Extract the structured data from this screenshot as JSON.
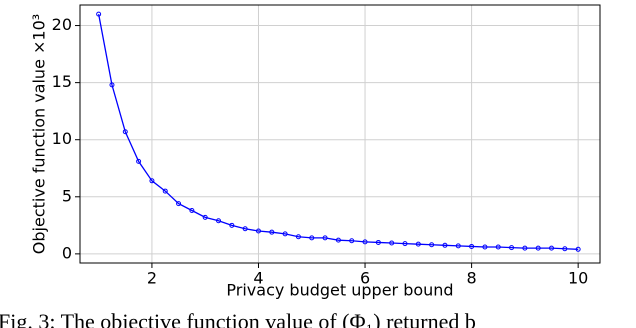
{
  "chart_data": {
    "type": "line",
    "xlabel": "Privacy budget upper bound",
    "ylabel": "Objective function value ×10³",
    "caption": "Fig. 3: The objective function value of (Φ₁) returned b",
    "x": [
      1,
      1.25,
      1.5,
      1.75,
      2,
      2.25,
      2.5,
      2.75,
      3,
      3.25,
      3.5,
      3.75,
      4,
      4.25,
      4.5,
      4.75,
      5,
      5.25,
      5.5,
      5.75,
      6,
      6.25,
      6.5,
      6.75,
      7,
      7.25,
      7.5,
      7.75,
      8,
      8.25,
      8.5,
      8.75,
      9,
      9.25,
      9.5,
      9.75,
      10
    ],
    "series": [
      {
        "color": "#0000ff",
        "values": [
          21.0,
          14.8,
          10.7,
          8.1,
          6.4,
          5.5,
          4.4,
          3.8,
          3.2,
          2.9,
          2.5,
          2.2,
          2.0,
          1.9,
          1.75,
          1.5,
          1.4,
          1.4,
          1.2,
          1.15,
          1.05,
          1.0,
          0.95,
          0.9,
          0.85,
          0.8,
          0.75,
          0.7,
          0.65,
          0.6,
          0.6,
          0.55,
          0.5,
          0.5,
          0.5,
          0.45,
          0.4
        ]
      }
    ],
    "xlim": [
      0.65,
      10.41
    ],
    "ylim": [
      -0.8,
      21.8
    ],
    "xticks": [
      2,
      4,
      6,
      8,
      10
    ],
    "yticks": [
      0,
      5,
      10,
      15,
      20
    ],
    "grid": true
  }
}
